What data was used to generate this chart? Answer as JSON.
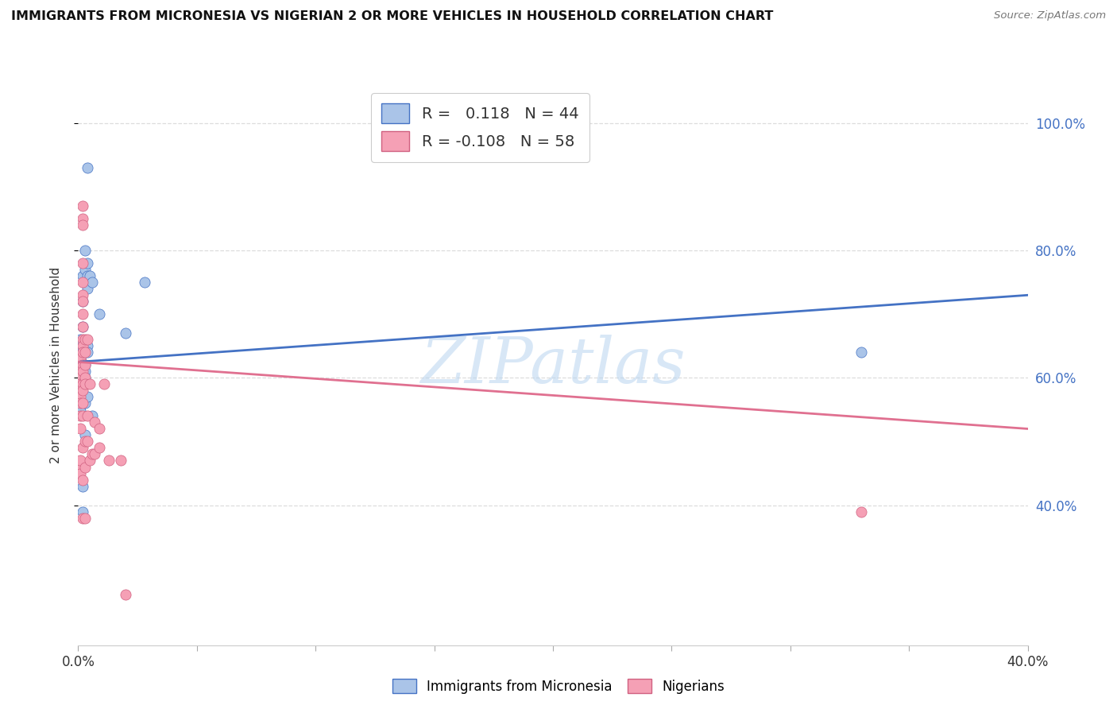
{
  "title": "IMMIGRANTS FROM MICRONESIA VS NIGERIAN 2 OR MORE VEHICLES IN HOUSEHOLD CORRELATION CHART",
  "source": "Source: ZipAtlas.com",
  "ylabel": "2 or more Vehicles in Household",
  "legend_blue_r": "0.118",
  "legend_blue_n": "44",
  "legend_pink_r": "-0.108",
  "legend_pink_n": "58",
  "blue_color": "#aac4e8",
  "pink_color": "#f5a0b5",
  "blue_line_color": "#4472c4",
  "pink_line_color": "#e07090",
  "blue_scatter": [
    [
      0.001,
      0.625
    ],
    [
      0.001,
      0.63
    ],
    [
      0.001,
      0.62
    ],
    [
      0.001,
      0.66
    ],
    [
      0.001,
      0.61
    ],
    [
      0.001,
      0.59
    ],
    [
      0.001,
      0.58
    ],
    [
      0.001,
      0.555
    ],
    [
      0.001,
      0.548
    ],
    [
      0.001,
      0.64
    ],
    [
      0.002,
      0.72
    ],
    [
      0.002,
      0.76
    ],
    [
      0.002,
      0.64
    ],
    [
      0.002,
      0.68
    ],
    [
      0.002,
      0.65
    ],
    [
      0.002,
      0.62
    ],
    [
      0.002,
      0.6
    ],
    [
      0.002,
      0.575
    ],
    [
      0.002,
      0.43
    ],
    [
      0.002,
      0.39
    ],
    [
      0.003,
      0.8
    ],
    [
      0.003,
      0.77
    ],
    [
      0.003,
      0.65
    ],
    [
      0.003,
      0.64
    ],
    [
      0.003,
      0.62
    ],
    [
      0.003,
      0.61
    ],
    [
      0.003,
      0.6
    ],
    [
      0.003,
      0.59
    ],
    [
      0.003,
      0.56
    ],
    [
      0.003,
      0.51
    ],
    [
      0.004,
      0.93
    ],
    [
      0.004,
      0.78
    ],
    [
      0.004,
      0.76
    ],
    [
      0.004,
      0.74
    ],
    [
      0.004,
      0.65
    ],
    [
      0.004,
      0.64
    ],
    [
      0.004,
      0.57
    ],
    [
      0.005,
      0.76
    ],
    [
      0.006,
      0.75
    ],
    [
      0.006,
      0.54
    ],
    [
      0.009,
      0.7
    ],
    [
      0.02,
      0.67
    ],
    [
      0.028,
      0.75
    ],
    [
      0.33,
      0.64
    ]
  ],
  "pink_scatter": [
    [
      0.001,
      0.46
    ],
    [
      0.001,
      0.59
    ],
    [
      0.001,
      0.58
    ],
    [
      0.001,
      0.62
    ],
    [
      0.001,
      0.63
    ],
    [
      0.001,
      0.61
    ],
    [
      0.001,
      0.6
    ],
    [
      0.001,
      0.59
    ],
    [
      0.001,
      0.57
    ],
    [
      0.001,
      0.56
    ],
    [
      0.001,
      0.54
    ],
    [
      0.001,
      0.52
    ],
    [
      0.001,
      0.47
    ],
    [
      0.001,
      0.45
    ],
    [
      0.002,
      0.87
    ],
    [
      0.002,
      0.85
    ],
    [
      0.002,
      0.84
    ],
    [
      0.002,
      0.78
    ],
    [
      0.002,
      0.75
    ],
    [
      0.002,
      0.73
    ],
    [
      0.002,
      0.72
    ],
    [
      0.002,
      0.7
    ],
    [
      0.002,
      0.68
    ],
    [
      0.002,
      0.66
    ],
    [
      0.002,
      0.65
    ],
    [
      0.002,
      0.64
    ],
    [
      0.002,
      0.62
    ],
    [
      0.002,
      0.61
    ],
    [
      0.002,
      0.59
    ],
    [
      0.002,
      0.58
    ],
    [
      0.002,
      0.56
    ],
    [
      0.002,
      0.54
    ],
    [
      0.002,
      0.49
    ],
    [
      0.002,
      0.44
    ],
    [
      0.002,
      0.38
    ],
    [
      0.003,
      0.66
    ],
    [
      0.003,
      0.64
    ],
    [
      0.003,
      0.62
    ],
    [
      0.003,
      0.6
    ],
    [
      0.003,
      0.59
    ],
    [
      0.003,
      0.5
    ],
    [
      0.003,
      0.46
    ],
    [
      0.003,
      0.38
    ],
    [
      0.004,
      0.66
    ],
    [
      0.004,
      0.54
    ],
    [
      0.004,
      0.5
    ],
    [
      0.005,
      0.59
    ],
    [
      0.005,
      0.47
    ],
    [
      0.006,
      0.48
    ],
    [
      0.007,
      0.53
    ],
    [
      0.007,
      0.48
    ],
    [
      0.009,
      0.52
    ],
    [
      0.009,
      0.49
    ],
    [
      0.011,
      0.59
    ],
    [
      0.013,
      0.47
    ],
    [
      0.018,
      0.47
    ],
    [
      0.02,
      0.26
    ],
    [
      0.33,
      0.39
    ]
  ],
  "xlim": [
    0.0,
    0.4
  ],
  "ylim": [
    0.18,
    1.06
  ],
  "xticks": [
    0.0,
    0.05,
    0.1,
    0.15,
    0.2,
    0.25,
    0.3,
    0.35,
    0.4
  ],
  "yticks": [
    0.4,
    0.6,
    0.8,
    1.0
  ],
  "watermark": "ZIPatlas",
  "background_color": "#ffffff",
  "grid_color": "#dddddd",
  "blue_line_x0": 0.0,
  "blue_line_y0": 0.625,
  "blue_line_x1": 0.4,
  "blue_line_y1": 0.73,
  "pink_line_x0": 0.0,
  "pink_line_y0": 0.625,
  "pink_line_x1": 0.4,
  "pink_line_y1": 0.52
}
